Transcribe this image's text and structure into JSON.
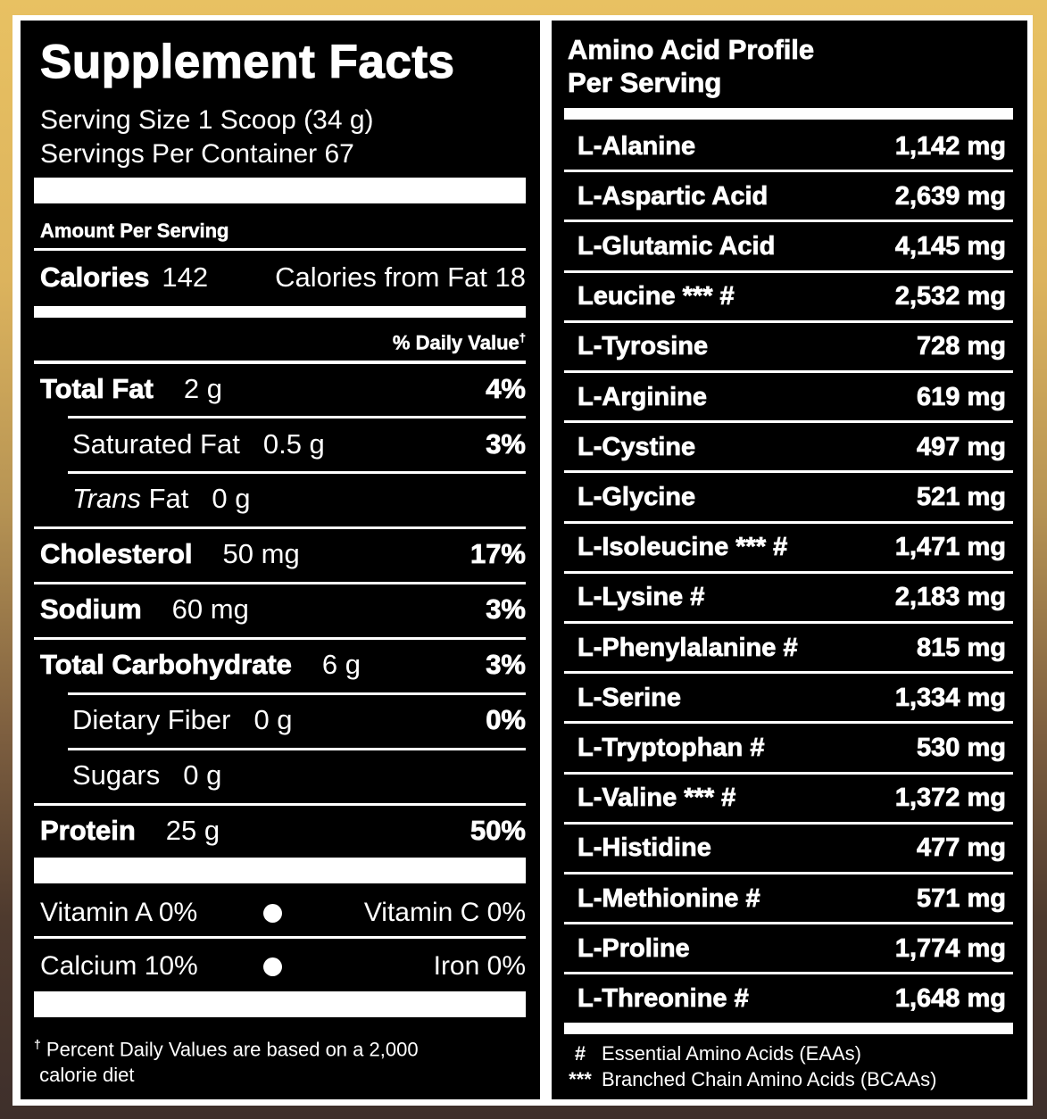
{
  "supplement_facts": {
    "title": "Supplement Facts",
    "serving_size": "Serving Size 1 Scoop (34 g)",
    "servings_per_container": "Servings Per Container 67",
    "amount_per_serving": "Amount Per Serving",
    "calories_label": "Calories",
    "calories_value": "142",
    "calories_from_fat": "Calories from Fat 18",
    "daily_value_header": "% Daily Value",
    "dagger": "†",
    "nutrients": [
      {
        "name": "Total Fat",
        "amount": "2 g",
        "dv": "4%"
      },
      {
        "name": "Saturated Fat",
        "amount": "0.5 g",
        "dv": "3%"
      },
      {
        "name_italic": "Trans",
        "name": " Fat",
        "amount": "0 g",
        "dv": ""
      },
      {
        "name": "Cholesterol",
        "amount": "50 mg",
        "dv": "17%"
      },
      {
        "name": "Sodium",
        "amount": "60 mg",
        "dv": "3%"
      },
      {
        "name": "Total Carbohydrate",
        "amount": "6 g",
        "dv": "3%"
      },
      {
        "name": "Dietary Fiber",
        "amount": "0 g",
        "dv": "0%"
      },
      {
        "name": "Sugars",
        "amount": "0 g",
        "dv": ""
      },
      {
        "name": "Protein",
        "amount": "25 g",
        "dv": "50%"
      }
    ],
    "vitamins": [
      {
        "left": "Vitamin A  0%",
        "right": "Vitamin C  0%"
      },
      {
        "left": "Calcium  10%",
        "right": "Iron  0%"
      }
    ],
    "footnote_line1": "Percent Daily Values are based on a 2,000",
    "footnote_line2": "calorie diet"
  },
  "amino_acid_profile": {
    "title_line1": "Amino Acid Profile",
    "title_line2": "Per Serving",
    "items": [
      {
        "name": "L-Alanine",
        "value": "1,142 mg"
      },
      {
        "name": "L-Aspartic Acid",
        "value": "2,639 mg"
      },
      {
        "name": "L-Glutamic Acid",
        "value": "4,145 mg"
      },
      {
        "name": "Leucine *** #",
        "value": "2,532 mg"
      },
      {
        "name": "L-Tyrosine",
        "value": "728 mg"
      },
      {
        "name": "L-Arginine",
        "value": "619 mg"
      },
      {
        "name": "L-Cystine",
        "value": "497 mg"
      },
      {
        "name": "L-Glycine",
        "value": "521 mg"
      },
      {
        "name": "L-Isoleucine *** #",
        "value": "1,471 mg"
      },
      {
        "name": "L-Lysine #",
        "value": "2,183 mg"
      },
      {
        "name": "L-Phenylalanine #",
        "value": "815 mg"
      },
      {
        "name": "L-Serine",
        "value": "1,334 mg"
      },
      {
        "name": "L-Tryptophan #",
        "value": "530 mg"
      },
      {
        "name": "L-Valine *** #",
        "value": "1,372 mg"
      },
      {
        "name": "L-Histidine",
        "value": "477 mg"
      },
      {
        "name": "L-Methionine #",
        "value": "571 mg"
      },
      {
        "name": "L-Proline",
        "value": "1,774 mg"
      },
      {
        "name": "L-Threonine #",
        "value": "1,648 mg"
      }
    ],
    "legend": [
      {
        "symbol": "#",
        "text": "Essential Amino Acids (EAAs)"
      },
      {
        "symbol": "***",
        "text": "Branched Chain Amino Acids (BCAAs)"
      }
    ]
  },
  "colors": {
    "panel": "#000000",
    "text": "#ffffff",
    "gradient_top": "#e8c162",
    "gradient_bottom": "#3e2f2b"
  }
}
